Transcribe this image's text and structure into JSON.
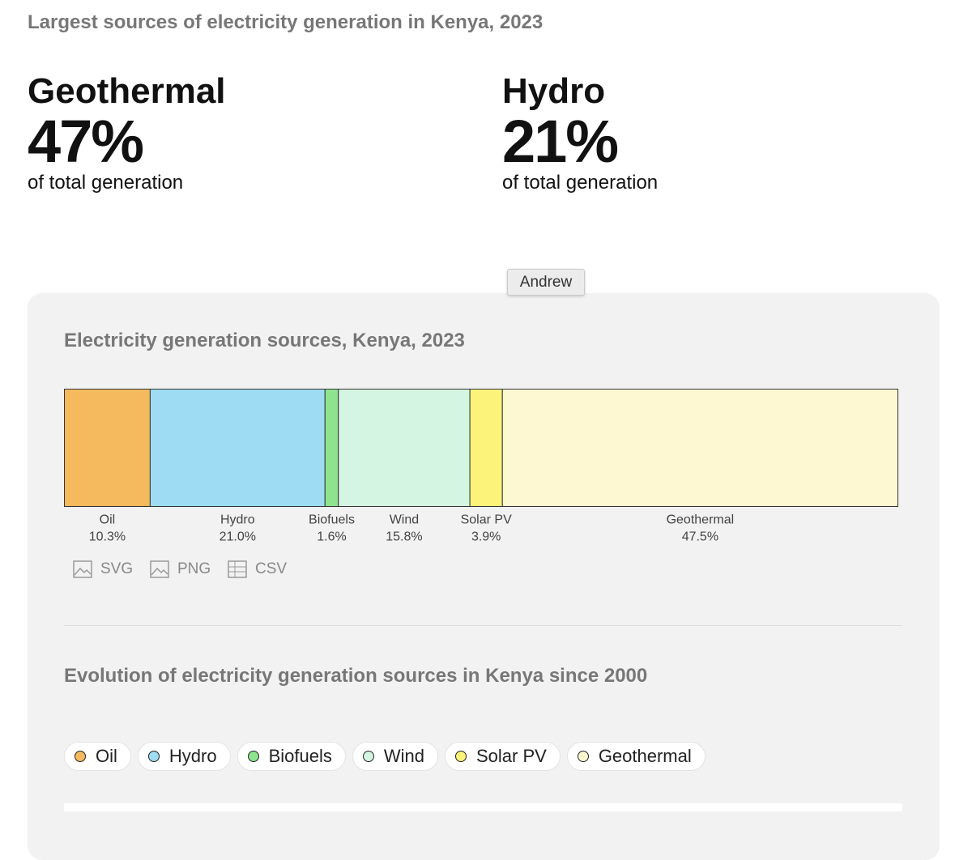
{
  "header": {
    "title": "Largest sources of electricity generation in Kenya, 2023"
  },
  "stats": [
    {
      "name": "Geothermal",
      "value": "47%",
      "caption": "of total generation"
    },
    {
      "name": "Hydro",
      "value": "21%",
      "caption": "of total generation"
    }
  ],
  "tooltip": "Andrew",
  "chart_data": {
    "type": "stacked-bar",
    "title": "Electricity generation sources, Kenya, 2023",
    "series": [
      {
        "name": "Oil",
        "color": "#f5b95e",
        "values": [
          10.3
        ],
        "value_labels": [
          "10.3%"
        ]
      },
      {
        "name": "Hydro",
        "color": "#9ddcf3",
        "values": [
          21.0
        ],
        "value_labels": [
          "21.0%"
        ]
      },
      {
        "name": "Biofuels",
        "color": "#8ee38f",
        "values": [
          1.6
        ],
        "value_labels": [
          "1.6%"
        ]
      },
      {
        "name": "Wind",
        "color": "#d5f5e3",
        "values": [
          15.8
        ],
        "value_labels": [
          "15.8%"
        ]
      },
      {
        "name": "Solar PV",
        "color": "#fbf37a",
        "values": [
          3.9
        ],
        "value_labels": [
          "3.9%"
        ]
      },
      {
        "name": "Geothermal",
        "color": "#fdf8d2",
        "values": [
          47.5
        ],
        "value_labels": [
          "47.5%"
        ]
      }
    ],
    "xlim": [
      0,
      100
    ]
  },
  "downloads": [
    "SVG",
    "PNG",
    "CSV"
  ],
  "section2": {
    "title": "Evolution of electricity generation sources in Kenya since 2000",
    "legend": [
      {
        "name": "Oil",
        "color": "#f5b95e"
      },
      {
        "name": "Hydro",
        "color": "#9ddcf3"
      },
      {
        "name": "Biofuels",
        "color": "#8ee38f"
      },
      {
        "name": "Wind",
        "color": "#d5f5e3"
      },
      {
        "name": "Solar PV",
        "color": "#fbf37a"
      },
      {
        "name": "Geothermal",
        "color": "#fdf8d2"
      }
    ]
  }
}
